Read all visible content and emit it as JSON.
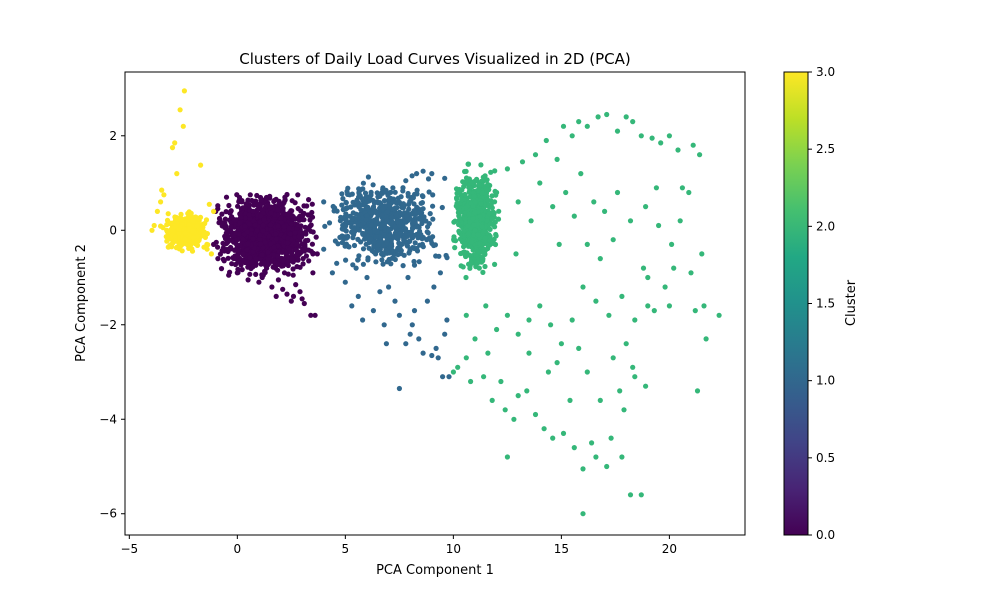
{
  "chart_data": {
    "type": "scatter",
    "title": "Clusters of Daily Load Curves Visualized in 2D (PCA)",
    "xlabel": "PCA Component 1",
    "ylabel": "PCA Component 2",
    "xlim": [
      -5.2,
      23.5
    ],
    "ylim": [
      -6.45,
      3.35
    ],
    "xticks": [
      -5,
      0,
      5,
      10,
      15,
      20
    ],
    "yticks": [
      -6,
      -4,
      -2,
      0,
      2
    ],
    "grid": false,
    "legend": "none",
    "colormap": "viridis",
    "colorbar": {
      "label": "Cluster",
      "range": [
        0.0,
        3.0
      ],
      "ticks": [
        "0.0",
        "0.5",
        "1.0",
        "1.5",
        "2.0",
        "2.5",
        "3.0"
      ]
    },
    "clusters": [
      {
        "cluster": 0,
        "color": "#440154",
        "dense_core": {
          "x": [
            -1.2,
            3.8
          ],
          "y": [
            -1.0,
            0.8
          ]
        },
        "points": [
          [
            -0.5,
            0.7
          ],
          [
            0.6,
            0.75
          ],
          [
            1.5,
            0.72
          ],
          [
            2.2,
            0.7
          ],
          [
            2.8,
            0.75
          ],
          [
            3.3,
            0.65
          ],
          [
            -0.9,
            -0.6
          ],
          [
            -0.4,
            -0.95
          ],
          [
            0.5,
            -1.05
          ],
          [
            1.2,
            -0.95
          ],
          [
            1.6,
            -1.2
          ],
          [
            1.9,
            -1.05
          ],
          [
            2.1,
            -1.25
          ],
          [
            2.3,
            -1.35
          ],
          [
            2.6,
            -1.4
          ],
          [
            2.7,
            -1.15
          ],
          [
            2.9,
            -1.3
          ],
          [
            3.0,
            -1.45
          ],
          [
            3.1,
            -1.55
          ],
          [
            2.5,
            -1.5
          ],
          [
            1.8,
            -1.4
          ],
          [
            3.4,
            -1.8
          ],
          [
            3.6,
            -1.8
          ],
          [
            3.5,
            -0.9
          ],
          [
            3.7,
            -0.5
          ],
          [
            -1.0,
            0.4
          ],
          [
            -1.1,
            -0.3
          ],
          [
            0.0,
            -0.9
          ],
          [
            1.0,
            -1.1
          ]
        ]
      },
      {
        "cluster": 1,
        "color": "#31688e",
        "dense_core": {
          "x": [
            3.8,
            9.9
          ],
          "y": [
            -0.9,
            1.2
          ]
        },
        "points": [
          [
            4.0,
            0.6
          ],
          [
            5.2,
            0.75
          ],
          [
            6.1,
            0.7
          ],
          [
            7.2,
            0.9
          ],
          [
            7.8,
            1.05
          ],
          [
            8.3,
            1.2
          ],
          [
            9.0,
            1.2
          ],
          [
            9.6,
            1.1
          ],
          [
            8.6,
            1.25
          ],
          [
            4.0,
            -0.4
          ],
          [
            4.6,
            -0.7
          ],
          [
            5.0,
            -1.1
          ],
          [
            5.6,
            -1.4
          ],
          [
            5.3,
            -1.6
          ],
          [
            5.8,
            -1.9
          ],
          [
            6.3,
            -1.7
          ],
          [
            6.8,
            -2.0
          ],
          [
            7.0,
            -1.2
          ],
          [
            7.3,
            -1.5
          ],
          [
            7.5,
            -1.8
          ],
          [
            7.8,
            -2.4
          ],
          [
            8.1,
            -2.0
          ],
          [
            8.2,
            -1.7
          ],
          [
            8.4,
            -2.3
          ],
          [
            8.6,
            -2.6
          ],
          [
            9.0,
            -2.65
          ],
          [
            9.3,
            -2.7
          ],
          [
            9.2,
            -2.5
          ],
          [
            9.6,
            -2.2
          ],
          [
            9.7,
            -1.9
          ],
          [
            9.8,
            -3.1
          ],
          [
            9.5,
            -3.1
          ],
          [
            7.5,
            -3.35
          ],
          [
            6.6,
            -1.3
          ],
          [
            6.0,
            -1.0
          ],
          [
            4.4,
            -0.9
          ],
          [
            8.8,
            -1.5
          ],
          [
            9.1,
            -1.2
          ],
          [
            7.9,
            -1.0
          ],
          [
            5.5,
            -0.8
          ],
          [
            8.0,
            -2.2
          ],
          [
            6.9,
            -2.4
          ],
          [
            9.4,
            -0.9
          ]
        ]
      },
      {
        "cluster": 2,
        "color": "#35b779",
        "dense_core": {
          "x": [
            9.9,
            12.2
          ],
          "y": [
            -1.0,
            1.4
          ]
        },
        "points": [
          [
            12.5,
            1.3
          ],
          [
            13.2,
            1.45
          ],
          [
            13.8,
            1.6
          ],
          [
            14.3,
            1.9
          ],
          [
            14.8,
            1.5
          ],
          [
            15.1,
            2.2
          ],
          [
            15.5,
            2.0
          ],
          [
            15.8,
            2.3
          ],
          [
            16.2,
            2.2
          ],
          [
            16.7,
            2.4
          ],
          [
            17.1,
            2.45
          ],
          [
            17.6,
            2.1
          ],
          [
            18.0,
            2.4
          ],
          [
            18.3,
            2.3
          ],
          [
            18.7,
            2.0
          ],
          [
            19.2,
            1.95
          ],
          [
            19.6,
            1.85
          ],
          [
            20.0,
            2.0
          ],
          [
            20.4,
            1.7
          ],
          [
            21.1,
            1.8
          ],
          [
            21.4,
            1.6
          ],
          [
            14.0,
            1.0
          ],
          [
            14.6,
            0.5
          ],
          [
            15.2,
            0.8
          ],
          [
            15.9,
            1.2
          ],
          [
            16.5,
            0.6
          ],
          [
            17.0,
            0.4
          ],
          [
            17.6,
            0.8
          ],
          [
            18.2,
            0.2
          ],
          [
            18.9,
            0.5
          ],
          [
            19.5,
            0.1
          ],
          [
            20.1,
            -0.3
          ],
          [
            20.5,
            0.2
          ],
          [
            20.9,
            0.8
          ],
          [
            21.5,
            -0.5
          ],
          [
            21.0,
            -0.9
          ],
          [
            19.8,
            -1.2
          ],
          [
            19.0,
            -1.6
          ],
          [
            18.4,
            -1.9
          ],
          [
            17.8,
            -1.4
          ],
          [
            17.2,
            -1.8
          ],
          [
            16.6,
            -1.5
          ],
          [
            16.0,
            -1.2
          ],
          [
            15.5,
            -1.9
          ],
          [
            15.0,
            -2.4
          ],
          [
            14.5,
            -2.0
          ],
          [
            14.0,
            -1.6
          ],
          [
            13.5,
            -1.9
          ],
          [
            13.0,
            -2.2
          ],
          [
            12.5,
            -1.8
          ],
          [
            12.0,
            -2.1
          ],
          [
            11.5,
            -1.6
          ],
          [
            11.0,
            -2.3
          ],
          [
            10.6,
            -2.7
          ],
          [
            10.2,
            -2.9
          ],
          [
            10.0,
            -3.0
          ],
          [
            10.8,
            -3.2
          ],
          [
            11.4,
            -3.1
          ],
          [
            11.8,
            -3.6
          ],
          [
            12.4,
            -3.8
          ],
          [
            12.8,
            -4.0
          ],
          [
            13.4,
            -3.4
          ],
          [
            13.8,
            -3.9
          ],
          [
            14.2,
            -4.2
          ],
          [
            14.6,
            -4.4
          ],
          [
            15.1,
            -4.3
          ],
          [
            15.6,
            -4.6
          ],
          [
            16.0,
            -5.05
          ],
          [
            16.6,
            -4.8
          ],
          [
            17.1,
            -5.0
          ],
          [
            17.8,
            -4.8
          ],
          [
            18.2,
            -5.6
          ],
          [
            18.7,
            -5.6
          ],
          [
            17.3,
            -4.4
          ],
          [
            16.4,
            -4.5
          ],
          [
            12.5,
            -4.8
          ],
          [
            16.0,
            -6.0
          ],
          [
            17.9,
            -3.8
          ],
          [
            18.4,
            -3.1
          ],
          [
            18.9,
            -3.3
          ],
          [
            21.3,
            -3.4
          ],
          [
            21.7,
            -2.3
          ],
          [
            22.3,
            -1.8
          ],
          [
            21.6,
            -1.6
          ],
          [
            21.2,
            -1.7
          ],
          [
            20.0,
            -1.6
          ],
          [
            19.3,
            -1.7
          ],
          [
            19.0,
            -1.0
          ],
          [
            13.5,
            -2.6
          ],
          [
            14.8,
            -2.8
          ],
          [
            16.2,
            -3.0
          ],
          [
            15.8,
            -2.5
          ],
          [
            17.4,
            -2.7
          ],
          [
            18.0,
            -2.4
          ],
          [
            11.2,
            -0.8
          ],
          [
            12.9,
            -0.5
          ],
          [
            13.6,
            0.2
          ],
          [
            14.9,
            -0.3
          ],
          [
            16.8,
            -0.6
          ],
          [
            17.4,
            -0.2
          ],
          [
            18.8,
            -0.8
          ],
          [
            20.2,
            -0.8
          ],
          [
            12.0,
            0.8
          ],
          [
            13.0,
            0.6
          ],
          [
            15.6,
            0.3
          ],
          [
            16.2,
            -0.3
          ],
          [
            19.4,
            0.9
          ],
          [
            20.6,
            0.9
          ],
          [
            10.6,
            -1.8
          ],
          [
            11.6,
            -2.6
          ],
          [
            12.2,
            -3.2
          ],
          [
            13.0,
            -3.5
          ],
          [
            14.4,
            -3.0
          ],
          [
            15.4,
            -3.6
          ],
          [
            16.8,
            -3.6
          ],
          [
            17.7,
            -3.4
          ],
          [
            18.3,
            -2.9
          ]
        ]
      },
      {
        "cluster": 3,
        "color": "#fde725",
        "dense_core": {
          "x": [
            -3.6,
            -1.2
          ],
          "y": [
            -0.45,
            0.4
          ]
        },
        "points": [
          [
            -2.45,
            2.95
          ],
          [
            -2.65,
            2.55
          ],
          [
            -2.9,
            1.85
          ],
          [
            -3.0,
            1.75
          ],
          [
            -1.7,
            1.38
          ],
          [
            -2.5,
            2.2
          ],
          [
            -3.5,
            0.85
          ],
          [
            -3.4,
            0.75
          ],
          [
            -3.55,
            0.6
          ],
          [
            -3.7,
            0.4
          ],
          [
            -3.85,
            0.1
          ],
          [
            -3.95,
            0.0
          ],
          [
            -1.3,
            0.55
          ],
          [
            -1.1,
            0.4
          ],
          [
            -1.4,
            -0.4
          ],
          [
            -1.2,
            -0.5
          ],
          [
            -2.8,
            1.2
          ],
          [
            -3.2,
            0.35
          ]
        ]
      }
    ]
  }
}
